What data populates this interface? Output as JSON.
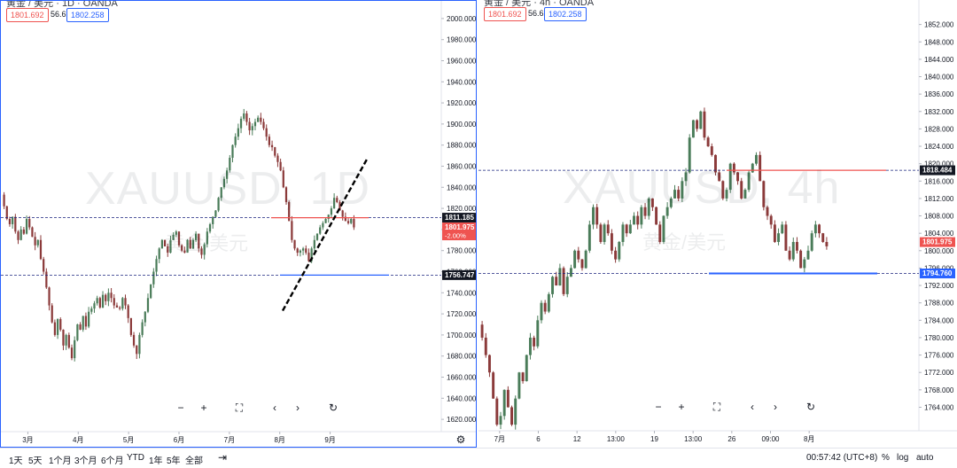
{
  "header": {
    "left": {
      "title": "黄金 / 美元 · 1D · OANDA",
      "low_box": "1801.692",
      "mid": "56.6",
      "high_box": "1802.258"
    },
    "right": {
      "title": "黄金 / 美元 · 4h · OANDA",
      "low_box": "1801.692",
      "mid": "56.6",
      "high_box": "1802.258"
    }
  },
  "watermark": {
    "left_symbol": "XAUUSD, 1D",
    "left_name": "黄金/美元",
    "right_symbol": "XAUUSD, 4h",
    "right_name": "黄金/美元"
  },
  "controls": {
    "zoom_out": "−",
    "zoom_in": "+",
    "fullscreen": "⛶",
    "back": "‹",
    "forward": "›",
    "reset": "↻"
  },
  "range_buttons": [
    "1天",
    "5天",
    "1个月",
    "3个月",
    "6个月",
    "YTD",
    "1年",
    "5年",
    "全部"
  ],
  "bottom": {
    "time": "00:57:42 (UTC+8)",
    "pct": "%",
    "log": "log",
    "auto": "auto",
    "calendar_icon": "calendar-range-icon"
  },
  "colors": {
    "up": "#26a69a",
    "down": "#ef5350",
    "candle_up": "#4a7c59",
    "candle_down": "#8b3a3a",
    "blue": "#2962ff",
    "red": "#ef5350"
  },
  "chart_data": [
    {
      "type": "candlestick",
      "symbol": "XAUUSD",
      "interval": "1D",
      "ylim": [
        1610,
        2010
      ],
      "y_ticks": [
        "2000.000",
        "1980.000",
        "1960.000",
        "1940.000",
        "1920.000",
        "1900.000",
        "1880.000",
        "1860.000",
        "1840.000",
        "1820.000",
        "1800.000",
        "1780.000",
        "1760.000",
        "1740.000",
        "1720.000",
        "1700.000",
        "1680.000",
        "1660.000",
        "1640.000",
        "1620.000"
      ],
      "x_ticks": [
        "3月",
        "4月",
        "5月",
        "6月",
        "7月",
        "8月",
        "9月"
      ],
      "price_labels": [
        {
          "text": "1811.185",
          "value": 1811.185,
          "color": "#131722"
        },
        {
          "text": "1801.975",
          "sub": "-2.00%",
          "value": 1801.975,
          "color": "#ef5350"
        },
        {
          "text": "1756.747",
          "value": 1756.747,
          "color": "#131722"
        }
      ],
      "hlines": [
        1811.185,
        1756.747
      ],
      "trendline": {
        "from": {
          "month": "6月底",
          "price": 1723
        },
        "to": {
          "month": "8月初",
          "price": 1868
        }
      },
      "segments": [
        {
          "start": 1833,
          "points": [
            1822,
            1810,
            1805,
            1812,
            1798,
            1790,
            1800,
            1796,
            1810,
            1802,
            1793,
            1785,
            1790,
            1772,
            1760,
            1745,
            1728,
            1712,
            1700,
            1715,
            1705,
            1690,
            1700,
            1688,
            1678,
            1695,
            1710,
            1705,
            1718,
            1708,
            1722,
            1725,
            1730,
            1735,
            1726,
            1738,
            1732,
            1740,
            1735,
            1728,
            1726,
            1725,
            1735,
            1728,
            1716,
            1700,
            1690,
            1682,
            1700,
            1712,
            1722,
            1735,
            1748,
            1760,
            1772,
            1782,
            1790,
            1784,
            1778,
            1790,
            1795,
            1798,
            1785,
            1780,
            1778,
            1790,
            1782,
            1790,
            1796,
            1782,
            1776,
            1786,
            1798,
            1805,
            1812,
            1818,
            1830,
            1840,
            1848,
            1856,
            1868,
            1880,
            1888,
            1896,
            1905,
            1910,
            1902,
            1894,
            1898,
            1902,
            1906,
            1902,
            1896,
            1888,
            1880,
            1878,
            1870,
            1864,
            1856,
            1840,
            1826,
            1808,
            1790,
            1782,
            1778,
            1780,
            1782,
            1778,
            1770,
            1782,
            1790,
            1796,
            1802,
            1806,
            1810,
            1814,
            1820,
            1830,
            1826,
            1818,
            1812,
            1808,
            1806,
            1810,
            1802
          ]
        }
      ]
    },
    {
      "type": "candlestick",
      "symbol": "XAUUSD",
      "interval": "4h",
      "ylim": [
        1759,
        1856
      ],
      "y_ticks": [
        "1852.000",
        "1848.000",
        "1844.000",
        "1840.000",
        "1836.000",
        "1832.000",
        "1828.000",
        "1824.000",
        "1820.000",
        "1816.000",
        "1812.000",
        "1808.000",
        "1804.000",
        "1800.000",
        "1796.000",
        "1792.000",
        "1788.000",
        "1784.000",
        "1780.000",
        "1776.000",
        "1772.000",
        "1768.000",
        "1764.000"
      ],
      "x_ticks": [
        "7月",
        "6",
        "12",
        "13:00",
        "19",
        "13:00",
        "26",
        "09:00",
        "8月"
      ],
      "price_labels": [
        {
          "text": "1818.484",
          "value": 1818.484,
          "color": "#131722"
        },
        {
          "text": "1801.975",
          "value": 1801.975,
          "color": "#ef5350"
        },
        {
          "text": "1794.760",
          "value": 1794.76,
          "color": "#2962ff"
        }
      ],
      "hlines": [
        1818.484,
        1794.76
      ],
      "segments": [
        {
          "start": 1783,
          "points": [
            1780,
            1776,
            1772,
            1766,
            1760,
            1762,
            1768,
            1764,
            1760,
            1766,
            1772,
            1770,
            1776,
            1780,
            1778,
            1784,
            1788,
            1786,
            1790,
            1794,
            1792,
            1796,
            1790,
            1794,
            1796,
            1800,
            1798,
            1796,
            1800,
            1806,
            1810,
            1806,
            1802,
            1806,
            1804,
            1800,
            1798,
            1802,
            1806,
            1804,
            1806,
            1808,
            1806,
            1810,
            1808,
            1812,
            1810,
            1806,
            1802,
            1808,
            1810,
            1812,
            1814,
            1812,
            1816,
            1818,
            1826,
            1830,
            1828,
            1832,
            1826,
            1824,
            1822,
            1818,
            1816,
            1812,
            1814,
            1820,
            1818,
            1816,
            1812,
            1814,
            1818,
            1820,
            1822,
            1816,
            1810,
            1808,
            1806,
            1802,
            1804,
            1806,
            1800,
            1798,
            1802,
            1800,
            1796,
            1798,
            1800,
            1804,
            1806,
            1804,
            1802,
            1801
          ]
        }
      ]
    }
  ]
}
